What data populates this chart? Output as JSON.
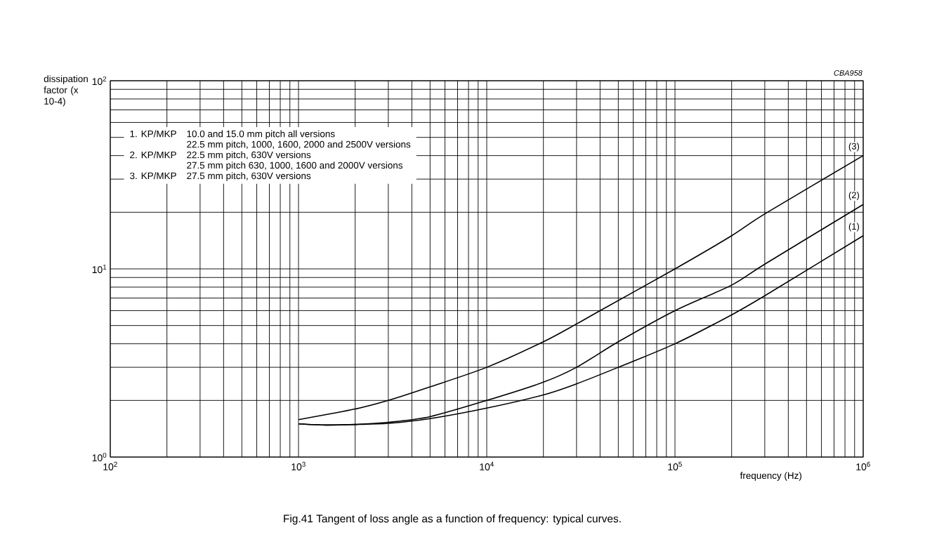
{
  "chart_data": {
    "type": "line",
    "title": "Fig.41  Tangent of loss angle as a function of frequency: typical curves.",
    "xlabel": "frequency (Hz)",
    "ylabel": "dissipation factor (x 10-4)",
    "annotations": [
      "1. KP/MKP",
      "10.0 and 15.0 mm pitch all versions",
      "22.5 mm pitch, 1000, 1600, 2000 and 2500V versions",
      "2. KP/MKP",
      "22.5 mm pitch, 630V versions",
      "27.5 mm pitch 630, 1000, 1600 and 2000V versions",
      "3. KP/MKP",
      "27.5 mm pitch, 630V versions",
      "CBA958"
    ],
    "log": "xy",
    "grid": true,
    "xlim": [
      100,
      1000000
    ],
    "ylim": [
      1,
      100
    ],
    "xticks": [
      {
        "value": 100,
        "label": "10$^{2}$"
      },
      {
        "value": 1000,
        "label": "10$^{3}$"
      },
      {
        "value": 10000,
        "label": "10$^{4}$"
      },
      {
        "value": 100000,
        "label": "10$^{5}$"
      },
      {
        "value": 1000000,
        "label": "10$^{6}$"
      }
    ],
    "yticks": [
      {
        "value": 1,
        "label": "10$^{0}$"
      },
      {
        "value": 10,
        "label": "10$^{1}$"
      },
      {
        "value": 100,
        "label": "10$^{2}$"
      }
    ],
    "series": [
      {
        "name": "(1)",
        "color": "#000000",
        "x": [
          1000,
          1400,
          2000,
          3000,
          5000,
          10000,
          20000,
          30000,
          50000,
          100000,
          200000,
          300000,
          1000000
        ],
        "values": [
          1.5,
          1.48,
          1.49,
          1.51,
          1.6,
          1.82,
          2.14,
          2.45,
          3.0,
          4.0,
          5.7,
          7.2,
          15
        ]
      },
      {
        "name": "(2)",
        "color": "#000000",
        "x": [
          1000,
          1400,
          2000,
          3000,
          5000,
          10000,
          20000,
          30000,
          50000,
          100000,
          200000,
          300000,
          1000000
        ],
        "values": [
          1.5,
          1.48,
          1.49,
          1.53,
          1.64,
          2.0,
          2.5,
          3.0,
          4.1,
          6.0,
          8.2,
          10.6,
          22
        ]
      },
      {
        "name": "(3)",
        "color": "#000000",
        "x": [
          1000,
          2000,
          3000,
          5000,
          10000,
          20000,
          30000,
          40000,
          100000,
          200000,
          300000,
          1000000
        ],
        "values": [
          1.58,
          1.8,
          2.0,
          2.36,
          3.0,
          4.1,
          5.1,
          6.0,
          10,
          15,
          19.6,
          40
        ]
      }
    ]
  }
}
